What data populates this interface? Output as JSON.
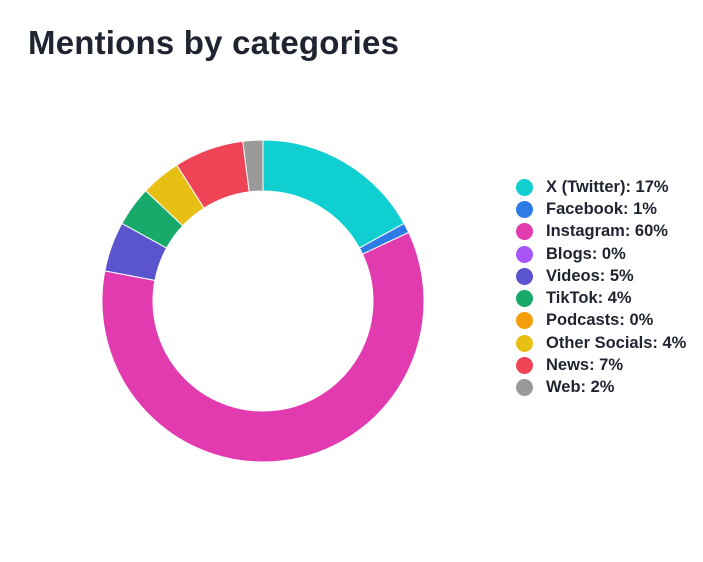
{
  "title": "Mentions by categories",
  "chart_data": {
    "type": "pie",
    "variant": "donut",
    "title": "Mentions by categories",
    "legend_position": "right",
    "start_angle_deg": 0,
    "direction": "clockwise",
    "series": [
      {
        "label": "X (Twitter): 17%",
        "name": "X (Twitter)",
        "value": 17,
        "color": "#0fcfd0"
      },
      {
        "label": "Facebook: 1%",
        "name": "Facebook",
        "value": 1,
        "color": "#2d7be5"
      },
      {
        "label": "Instagram: 60%",
        "name": "Instagram",
        "value": 60,
        "color": "#e23bb0"
      },
      {
        "label": "Blogs: 0%",
        "name": "Blogs",
        "value": 0,
        "color": "#a855f7"
      },
      {
        "label": "Videos: 5%",
        "name": "Videos",
        "value": 5,
        "color": "#5a55cf"
      },
      {
        "label": "TikTok: 4%",
        "name": "TikTok",
        "value": 4,
        "color": "#17aa6b"
      },
      {
        "label": "Podcasts: 0%",
        "name": "Podcasts",
        "value": 0,
        "color": "#f59e0b"
      },
      {
        "label": "Other Socials: 4%",
        "name": "Other Socials",
        "value": 4,
        "color": "#e8c014"
      },
      {
        "label": "News: 7%",
        "name": "News",
        "value": 7,
        "color": "#ef4455"
      },
      {
        "label": "Web: 2%",
        "name": "Web",
        "value": 2,
        "color": "#9a9a9a"
      }
    ]
  }
}
